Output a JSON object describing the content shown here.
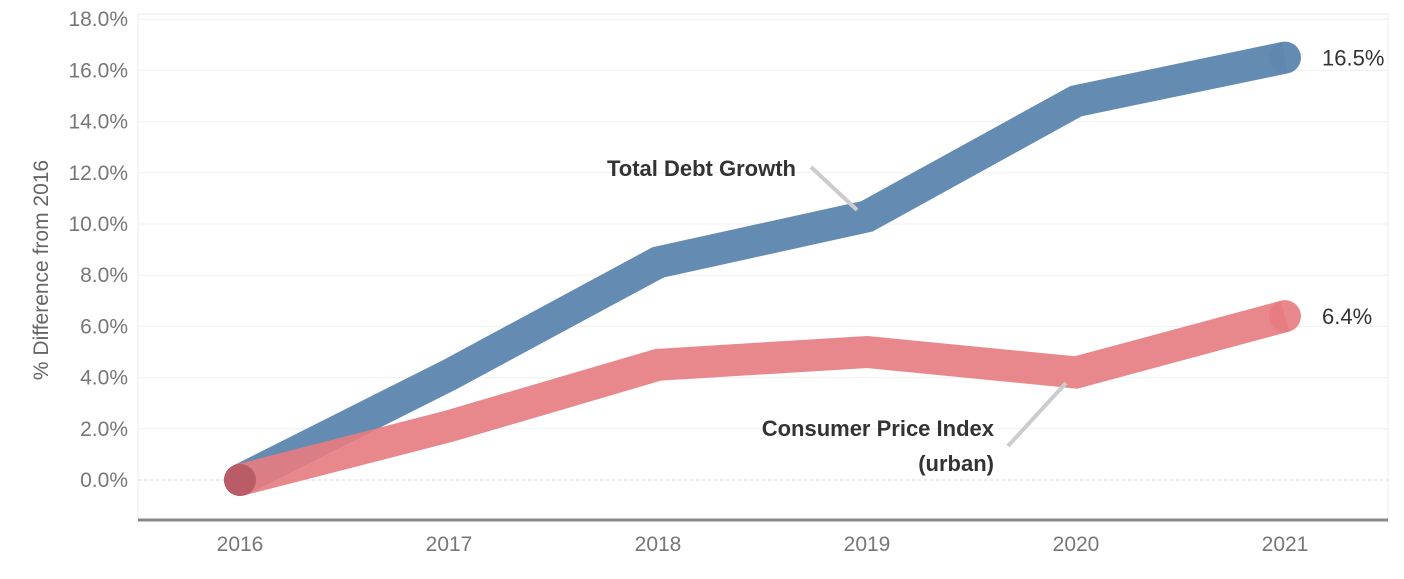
{
  "chart_data": {
    "type": "line",
    "ylabel": "% Difference from 2016",
    "xlabel": "",
    "x": [
      "2016",
      "2017",
      "2018",
      "2019",
      "2020",
      "2021"
    ],
    "ylim": [
      -1.5,
      18.0
    ],
    "y_ticks": [
      "0.0%",
      "2.0%",
      "4.0%",
      "6.0%",
      "8.0%",
      "10.0%",
      "12.0%",
      "14.0%",
      "16.0%",
      "18.0%"
    ],
    "y_tick_values": [
      0,
      2,
      4,
      6,
      8,
      10,
      12,
      14,
      16,
      18
    ],
    "grid": true,
    "series": [
      {
        "name": "Total Debt Growth",
        "values": [
          0.0,
          4.1,
          8.5,
          10.3,
          14.8,
          16.5
        ],
        "color": "#5f87b0",
        "end_label": "16.5%"
      },
      {
        "name": "Consumer Price Index (urban)",
        "values": [
          0.0,
          2.1,
          4.5,
          5.0,
          4.2,
          6.4
        ],
        "color": "#e77b7f",
        "end_label": "6.4%"
      }
    ],
    "annotations": [
      {
        "lines": [
          "Total Debt Growth"
        ]
      },
      {
        "lines": [
          "Consumer Price Index",
          "(urban)"
        ]
      }
    ]
  }
}
